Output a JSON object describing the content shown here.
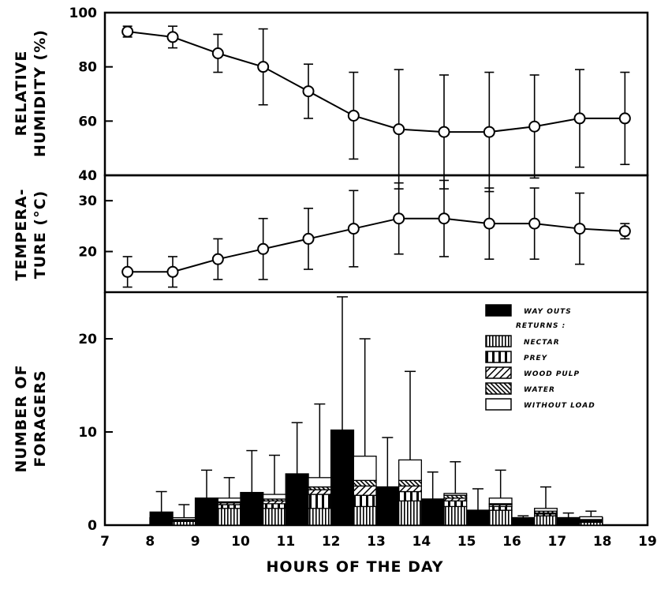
{
  "chart_data": [
    {
      "type": "line",
      "panel": "humidity",
      "ylabel_lines": [
        "RELATIVE",
        "HUMIDITY (%)"
      ],
      "ylim": [
        40,
        100
      ],
      "yticks": [
        40,
        60,
        80,
        100
      ],
      "x": [
        7.5,
        8.5,
        9.5,
        10.5,
        11.5,
        12.5,
        13.5,
        14.5,
        15.5,
        16.5,
        17.5,
        18.5
      ],
      "y": [
        93,
        91,
        85,
        80,
        71,
        62,
        57,
        56,
        56,
        58,
        61,
        61
      ],
      "err": [
        2,
        4,
        7,
        14,
        10,
        16,
        22,
        21,
        22,
        19,
        18,
        17
      ]
    },
    {
      "type": "line",
      "panel": "temperature",
      "ylabel_lines": [
        "TEMPERA-",
        "TURE (°C)"
      ],
      "ylim": [
        12,
        35
      ],
      "yticks": [
        20,
        30
      ],
      "x": [
        7.5,
        8.5,
        9.5,
        10.5,
        11.5,
        12.5,
        13.5,
        14.5,
        15.5,
        16.5,
        17.5,
        18.5
      ],
      "y": [
        16,
        16,
        18.5,
        20.5,
        22.5,
        24.5,
        26.5,
        26.5,
        25.5,
        25.5,
        24.5,
        24
      ],
      "err": [
        3,
        3,
        4,
        6,
        6,
        7.5,
        7,
        7.5,
        7,
        7,
        7,
        1.5
      ]
    },
    {
      "type": "bar",
      "panel": "foragers",
      "ylabel_lines": [
        "NUMBER OF",
        "FORAGERS"
      ],
      "ylim": [
        0,
        25
      ],
      "yticks": [
        0,
        10,
        20
      ],
      "xlim": [
        7,
        19
      ],
      "xticks": [
        7,
        8,
        9,
        10,
        11,
        12,
        13,
        14,
        15,
        16,
        17,
        18,
        19
      ],
      "xlabel": "HOURS OF THE DAY",
      "legend": {
        "way_outs": "WAY OUTS",
        "returns": "RETURNS :",
        "nectar": "NECTAR",
        "prey": "PREY",
        "wood_pulp": "WOOD PULP",
        "water": "WATER",
        "without_load": "WITHOUT LOAD"
      },
      "way_outs": [
        {
          "start": 8.0,
          "end": 8.5,
          "value": 1.4,
          "err": 3.6
        },
        {
          "start": 9.0,
          "end": 9.5,
          "value": 2.9,
          "err": 5.9
        },
        {
          "start": 10.0,
          "end": 10.5,
          "value": 3.5,
          "err": 8.0
        },
        {
          "start": 11.0,
          "end": 11.5,
          "value": 5.5,
          "err": 11.0
        },
        {
          "start": 12.0,
          "end": 12.5,
          "value": 10.2,
          "err": 24.5
        },
        {
          "start": 13.0,
          "end": 13.5,
          "value": 4.1,
          "err": 9.4
        },
        {
          "start": 14.0,
          "end": 14.5,
          "value": 2.8,
          "err": 5.7
        },
        {
          "start": 15.0,
          "end": 15.5,
          "value": 1.6,
          "err": 3.9
        },
        {
          "start": 16.0,
          "end": 16.5,
          "value": 0.8,
          "err": 1.0
        },
        {
          "start": 17.0,
          "end": 17.5,
          "value": 0.8,
          "err": 1.3
        }
      ],
      "returns": [
        {
          "start": 8.5,
          "end": 9.0,
          "nectar": 0.4,
          "prey": 0.1,
          "wood_pulp": 0,
          "water": 0.1,
          "without_load": 0.2,
          "err": 2.2
        },
        {
          "start": 9.5,
          "end": 10.0,
          "nectar": 1.8,
          "prey": 0.4,
          "wood_pulp": 0.2,
          "water": 0.1,
          "without_load": 0.4,
          "err": 5.1
        },
        {
          "start": 10.5,
          "end": 11.0,
          "nectar": 1.8,
          "prey": 0.5,
          "wood_pulp": 0.3,
          "water": 0.2,
          "without_load": 0.5,
          "err": 7.5
        },
        {
          "start": 11.5,
          "end": 12.0,
          "nectar": 1.8,
          "prey": 1.5,
          "wood_pulp": 0.5,
          "water": 0.3,
          "without_load": 1.0,
          "err": 13.0
        },
        {
          "start": 12.5,
          "end": 13.0,
          "nectar": 2.0,
          "prey": 1.2,
          "wood_pulp": 1.0,
          "water": 0.6,
          "without_load": 2.6,
          "err": 20.0
        },
        {
          "start": 13.5,
          "end": 14.0,
          "nectar": 2.6,
          "prey": 1.0,
          "wood_pulp": 0.6,
          "water": 0.6,
          "without_load": 2.2,
          "err": 16.5
        },
        {
          "start": 14.5,
          "end": 15.0,
          "nectar": 2.0,
          "prey": 0.6,
          "wood_pulp": 0.3,
          "water": 0.3,
          "without_load": 0.2,
          "err": 6.8
        },
        {
          "start": 15.5,
          "end": 16.0,
          "nectar": 1.6,
          "prey": 0.4,
          "wood_pulp": 0.2,
          "water": 0.1,
          "without_load": 0.6,
          "err": 5.9
        },
        {
          "start": 16.5,
          "end": 17.0,
          "nectar": 1.0,
          "prey": 0.2,
          "wood_pulp": 0.1,
          "water": 0.2,
          "without_load": 0.3,
          "err": 4.1
        },
        {
          "start": 17.5,
          "end": 18.0,
          "nectar": 0.3,
          "prey": 0.1,
          "wood_pulp": 0.1,
          "water": 0.1,
          "without_load": 0.3,
          "err": 1.5
        }
      ]
    }
  ]
}
